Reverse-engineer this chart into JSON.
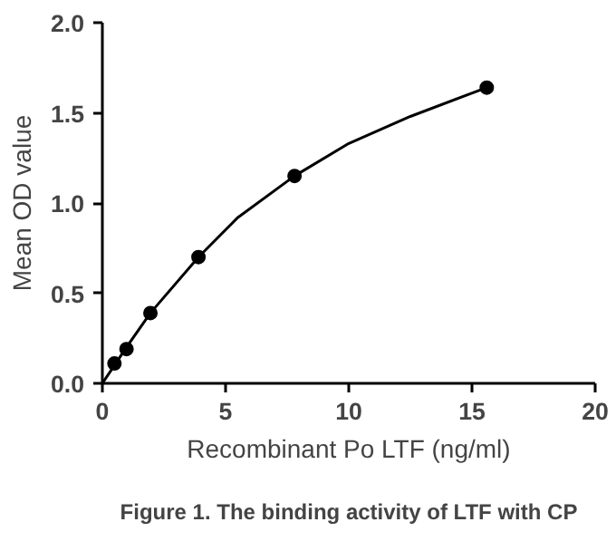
{
  "chart_data": {
    "type": "scatter",
    "xlabel": "Recombinant Po LTF (ng/ml)",
    "ylabel": "Mean OD value",
    "annotations": [
      "Figure 1. The binding activity of LTF with CP"
    ],
    "xlim": [
      0,
      20
    ],
    "ylim": [
      0,
      2.0
    ],
    "xticks": [
      0,
      5,
      10,
      15,
      20
    ],
    "yticks": [
      {
        "value": 0,
        "label": "0.0"
      },
      0.5,
      {
        "value": 1,
        "label": "1.0"
      },
      1.5,
      {
        "value": 2,
        "label": "2.0"
      }
    ],
    "grid": false,
    "marker": "circle",
    "series": [
      {
        "color": "#000000",
        "x": [
          0.49,
          0.98,
          1.95,
          3.9,
          7.8,
          15.6
        ],
        "values": [
          0.11,
          0.19,
          0.39,
          0.7,
          1.15,
          1.64
        ]
      },
      {
        "type": "line",
        "color": "#000000",
        "marker": "none",
        "line_style": "solid",
        "x": [
          0,
          0.49,
          0.98,
          1.95,
          3.9,
          5.5,
          7.8,
          10,
          12.5,
          15.6
        ],
        "values": [
          0,
          0.1,
          0.2,
          0.39,
          0.7,
          0.92,
          1.15,
          1.33,
          1.48,
          1.64
        ]
      }
    ]
  }
}
